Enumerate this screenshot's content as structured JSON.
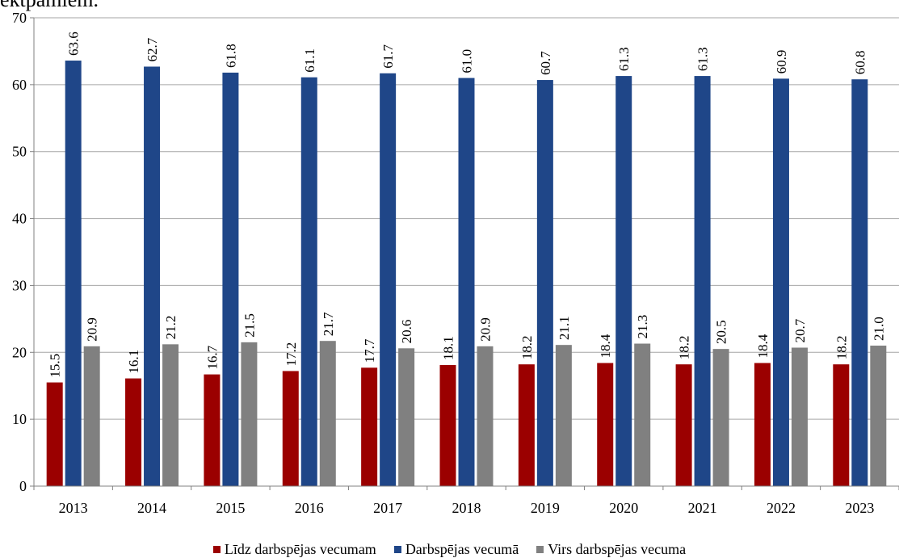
{
  "top_cut_text": "ektpamiem.",
  "colors": {
    "series_1": "#9b0000",
    "series_2": "#1f4688",
    "series_3": "#808080",
    "grid": "#a6a6a6",
    "axis": "#808080"
  },
  "chart_data": {
    "type": "bar",
    "categories": [
      "2013",
      "2014",
      "2015",
      "2016",
      "2017",
      "2018",
      "2019",
      "2020",
      "2021",
      "2022",
      "2023"
    ],
    "series": [
      {
        "name": "Līdz darbspējas vecumam",
        "values": [
          15.5,
          16.1,
          16.7,
          17.2,
          17.7,
          18.1,
          18.2,
          18.4,
          18.2,
          18.4,
          18.2
        ],
        "labels": [
          "15.5",
          "16.1",
          "16.7",
          "17.2",
          "17.7",
          "18.1",
          "18.2",
          "18.4",
          "18.2",
          "18.4",
          "18.2"
        ]
      },
      {
        "name": "Darbspējas vecumā",
        "values": [
          63.6,
          62.7,
          61.8,
          61.1,
          61.7,
          61.0,
          60.7,
          61.3,
          61.3,
          60.9,
          60.8
        ],
        "labels": [
          "63.6",
          "62.7",
          "61.8",
          "61.1",
          "61.7",
          "61.0",
          "60.7",
          "61.3",
          "61.3",
          "60.9",
          "60.8"
        ]
      },
      {
        "name": "Virs darbspējas vecuma",
        "values": [
          20.9,
          21.2,
          21.5,
          21.7,
          20.6,
          20.9,
          21.1,
          21.3,
          20.5,
          20.7,
          21.0
        ],
        "labels": [
          "20.9",
          "21.2",
          "21.5",
          "21.7",
          "20.6",
          "20.9",
          "21.1",
          "21.3",
          "20.5",
          "20.7",
          "21.0"
        ]
      }
    ],
    "ylim": [
      0,
      70
    ],
    "yticks": [
      "0",
      "10",
      "20",
      "30",
      "40",
      "50",
      "60",
      "70"
    ],
    "grid": true,
    "legend_position": "bottom"
  }
}
